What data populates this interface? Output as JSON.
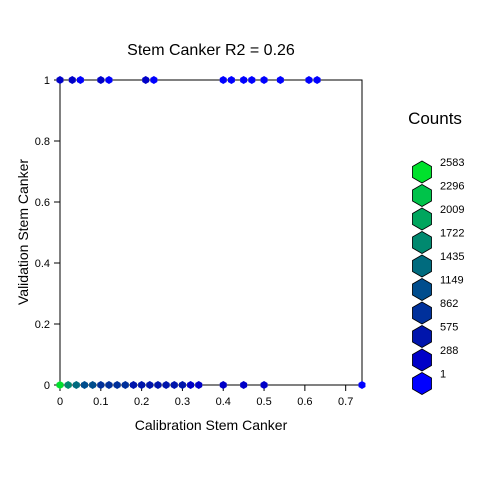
{
  "chart_data": {
    "type": "hexbin",
    "title": "Stem Canker  R2  =  0.26",
    "xlabel": "Calibration  Stem Canker",
    "ylabel": "Validation  Stem Canker",
    "xlim": [
      0,
      0.74
    ],
    "ylim": [
      0,
      1
    ],
    "x_ticks": [
      "0",
      "0.1",
      "0.2",
      "0.3",
      "0.4",
      "0.5",
      "0.6",
      "0.7"
    ],
    "y_ticks": [
      "0",
      "0.2",
      "0.4",
      "0.6",
      "0.8",
      "1"
    ],
    "legend": {
      "title": "Counts",
      "labels": [
        "2583",
        "2296",
        "2009",
        "1722",
        "1435",
        "1149",
        "862",
        "575",
        "288",
        "1"
      ],
      "colors": [
        "#00e12c",
        "#00c34a",
        "#00a65e",
        "#00896f",
        "#006b7e",
        "#004d8d",
        "#00309b",
        "#0015ac",
        "#0000c8",
        "#0000ff"
      ]
    },
    "hexes_y0": [
      {
        "x": 0.0,
        "count": 2583
      },
      {
        "x": 0.02,
        "count": 150
      },
      {
        "x": 0.04,
        "count": 60
      },
      {
        "x": 0.06,
        "count": 40
      },
      {
        "x": 0.08,
        "count": 30
      },
      {
        "x": 0.1,
        "count": 20
      },
      {
        "x": 0.12,
        "count": 15
      },
      {
        "x": 0.14,
        "count": 12
      },
      {
        "x": 0.16,
        "count": 10
      },
      {
        "x": 0.18,
        "count": 8
      },
      {
        "x": 0.2,
        "count": 7
      },
      {
        "x": 0.22,
        "count": 6
      },
      {
        "x": 0.24,
        "count": 5
      },
      {
        "x": 0.26,
        "count": 5
      },
      {
        "x": 0.28,
        "count": 4
      },
      {
        "x": 0.3,
        "count": 4
      },
      {
        "x": 0.32,
        "count": 3
      },
      {
        "x": 0.34,
        "count": 3
      },
      {
        "x": 0.4,
        "count": 2
      },
      {
        "x": 0.45,
        "count": 2
      },
      {
        "x": 0.5,
        "count": 2
      },
      {
        "x": 0.74,
        "count": 1
      }
    ],
    "hexes_y1": [
      {
        "x": 0.0,
        "count": 3
      },
      {
        "x": 0.03,
        "count": 2
      },
      {
        "x": 0.05,
        "count": 1
      },
      {
        "x": 0.1,
        "count": 2
      },
      {
        "x": 0.12,
        "count": 1
      },
      {
        "x": 0.21,
        "count": 2
      },
      {
        "x": 0.23,
        "count": 1
      },
      {
        "x": 0.4,
        "count": 1
      },
      {
        "x": 0.42,
        "count": 1
      },
      {
        "x": 0.45,
        "count": 1
      },
      {
        "x": 0.47,
        "count": 1
      },
      {
        "x": 0.5,
        "count": 1
      },
      {
        "x": 0.54,
        "count": 1
      },
      {
        "x": 0.61,
        "count": 1
      },
      {
        "x": 0.63,
        "count": 1
      }
    ]
  }
}
